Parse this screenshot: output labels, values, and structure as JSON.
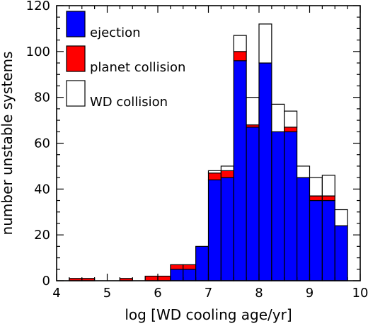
{
  "chart_data": {
    "type": "bar",
    "stacked": true,
    "histogram": true,
    "title": "",
    "xlabel": "log [WD cooling age/yr]",
    "ylabel": "number unstable systems",
    "xlim": [
      4,
      10
    ],
    "ylim": [
      0,
      120
    ],
    "x_ticks": [
      "4",
      "5",
      "6",
      "7",
      "8",
      "9",
      "10"
    ],
    "y_ticks": [
      "0",
      "20",
      "40",
      "60",
      "80",
      "100",
      "120"
    ],
    "bin_width": 0.25,
    "bin_starts": [
      4.25,
      4.5,
      4.75,
      5.0,
      5.25,
      5.5,
      5.75,
      6.0,
      6.25,
      6.5,
      6.75,
      7.0,
      7.25,
      7.5,
      7.75,
      8.0,
      8.25,
      8.5,
      8.75,
      9.0,
      9.25,
      9.5
    ],
    "series": [
      {
        "name": "ejection",
        "color": "#0000ff",
        "values": [
          0,
          0,
          0,
          0,
          0,
          0,
          0,
          0,
          5,
          5,
          15,
          44,
          45,
          96,
          67,
          95,
          65,
          65,
          45,
          35,
          35,
          24
        ]
      },
      {
        "name": "planet collision",
        "color": "#ff0000",
        "values": [
          1,
          1,
          0,
          0,
          1,
          0,
          2,
          2,
          2,
          2,
          0,
          3,
          3,
          4,
          1,
          0,
          0,
          2,
          0,
          2,
          2,
          0
        ]
      },
      {
        "name": "WD collision",
        "color": "#ffffff",
        "values": [
          0,
          0,
          0,
          0,
          0,
          0,
          0,
          0,
          0,
          0,
          0,
          1,
          2,
          7,
          12,
          17,
          12,
          7,
          5,
          8,
          9,
          7
        ]
      }
    ],
    "legend": {
      "position": "top-left"
    },
    "grid": false
  }
}
